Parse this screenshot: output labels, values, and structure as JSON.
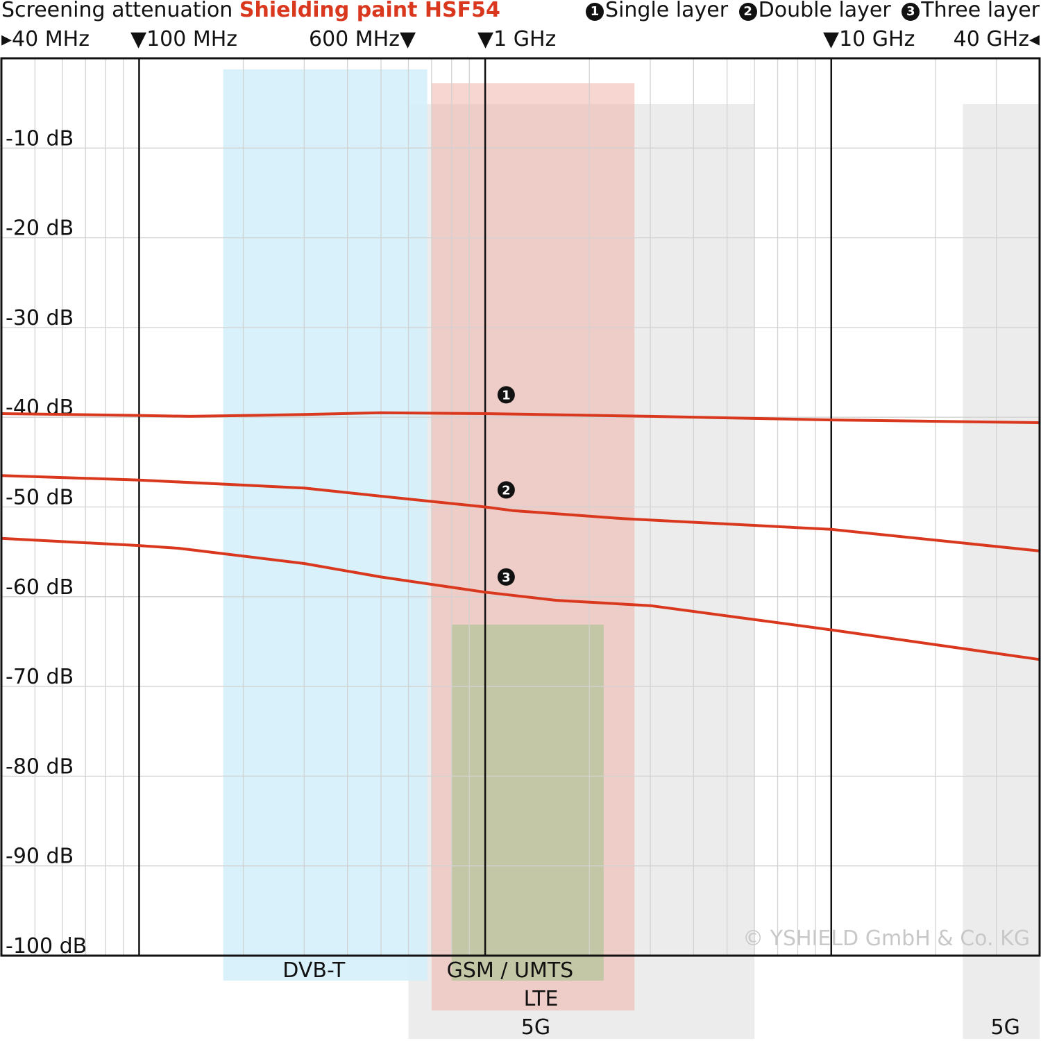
{
  "header": {
    "title_prefix": "Screening attenuation",
    "title_product": "Shielding paint HSF54",
    "legend": [
      {
        "marker": "1",
        "label": "Single layer"
      },
      {
        "marker": "2",
        "label": "Double layer"
      },
      {
        "marker": "3",
        "label": "Three layer"
      }
    ],
    "freq_labels": {
      "f40mhz": "▸40 MHz",
      "f100mhz": "▼100 MHz",
      "f600mhz": "600 MHz▼",
      "f1ghz": "▼1 GHz",
      "f10ghz": "▼10 GHz",
      "f40ghz": "40 GHz◂"
    }
  },
  "chart_data": {
    "type": "line",
    "title": "Screening attenuation Shielding paint HSF54",
    "xscale": "log",
    "xunit": "MHz",
    "xlim": [
      40,
      40000
    ],
    "ylim": [
      -100,
      0
    ],
    "yticks": [
      -10,
      -20,
      -30,
      -40,
      -50,
      -60,
      -70,
      -80,
      -90,
      -100
    ],
    "ytick_labels": [
      "-10 dB",
      "-20 dB",
      "-30 dB",
      "-40 dB",
      "-50 dB",
      "-60 dB",
      "-70 dB",
      "-80 dB",
      "-90 dB",
      "-100 dB"
    ],
    "grid": true,
    "colors": {
      "series": "#d9381e",
      "dvbt": "#d4effb",
      "gsm_lte": "#f1b3a9",
      "gsm_umts": "#b5c69a",
      "fiveg": "#dcdcdc",
      "watermark": "#c8c8c8"
    },
    "series": [
      {
        "name": "Single layer",
        "marker": "1",
        "x": [
          40,
          100,
          140,
          300,
          500,
          1000,
          3000,
          10000,
          40000
        ],
        "y": [
          -39.6,
          -39.8,
          -39.9,
          -39.7,
          -39.5,
          -39.6,
          -39.9,
          -40.3,
          -40.6
        ]
      },
      {
        "name": "Double layer",
        "marker": "2",
        "x": [
          40,
          100,
          300,
          500,
          1000,
          1200,
          2500,
          10000,
          40000
        ],
        "y": [
          -46.5,
          -47.0,
          -47.9,
          -48.8,
          -50.0,
          -50.4,
          -51.3,
          -52.5,
          -54.9
        ]
      },
      {
        "name": "Three layer",
        "marker": "3",
        "x": [
          40,
          100,
          130,
          300,
          500,
          1000,
          1600,
          3000,
          10000,
          40000
        ],
        "y": [
          -53.5,
          -54.3,
          -54.6,
          -56.3,
          -57.8,
          -59.5,
          -60.4,
          -61.0,
          -63.7,
          -67.0
        ]
      }
    ],
    "marker_labels_at": {
      "x": 1150,
      "y": [
        -37.5,
        -48.1,
        -57.8
      ]
    },
    "bands": [
      {
        "name": "DVB-T",
        "from": 175,
        "to": 680,
        "label_row": 1
      },
      {
        "name": "GSM / UMTS",
        "from": 800,
        "to": 2200,
        "label_row": 1
      },
      {
        "name": "LTE",
        "from": 700,
        "to": 2700,
        "label_row": 2
      },
      {
        "name": "5G",
        "from": 600,
        "to": 6000,
        "label_row": 3
      },
      {
        "name": "5G",
        "from": 24000,
        "to": 40000,
        "label_row": 3
      }
    ],
    "watermark": "© YSHIELD GmbH & Co. KG"
  }
}
